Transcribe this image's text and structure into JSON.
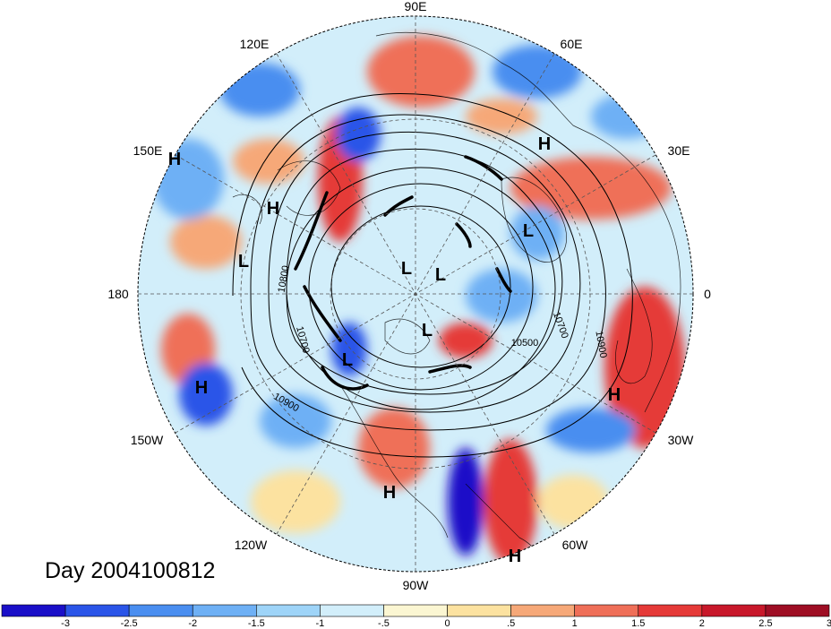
{
  "map": {
    "day_label": "Day 2004100812",
    "longitude_labels": [
      {
        "name": "lon-90e",
        "text": "90E",
        "angle": 90
      },
      {
        "name": "lon-60e",
        "text": "60E",
        "angle": 60
      },
      {
        "name": "lon-30e",
        "text": "30E",
        "angle": 30
      },
      {
        "name": "lon-0",
        "text": "0",
        "angle": 0
      },
      {
        "name": "lon-30w",
        "text": "30W",
        "angle": -30
      },
      {
        "name": "lon-60w",
        "text": "60W",
        "angle": -60
      },
      {
        "name": "lon-90w",
        "text": "90W",
        "angle": -90
      },
      {
        "name": "lon-120w",
        "text": "120W",
        "angle": -120
      },
      {
        "name": "lon-150w",
        "text": "150W",
        "angle": -150
      },
      {
        "name": "lon-180",
        "text": "180",
        "angle": 180
      },
      {
        "name": "lon-150e",
        "text": "150E",
        "angle": 150
      },
      {
        "name": "lon-120e",
        "text": "120E",
        "angle": 120
      }
    ],
    "pressure_centers": [
      {
        "type": "H"
      },
      {
        "type": "H"
      },
      {
        "type": "L"
      },
      {
        "type": "H"
      },
      {
        "type": "L"
      },
      {
        "type": "L"
      },
      {
        "type": "L"
      },
      {
        "type": "L"
      },
      {
        "type": "L"
      },
      {
        "type": "H"
      },
      {
        "type": "H"
      },
      {
        "type": "H"
      },
      {
        "type": "H"
      }
    ],
    "contour_labels": [
      "10800",
      "10700",
      "10900",
      "10500",
      "10700",
      "10900"
    ]
  },
  "colorbar": {
    "colors": [
      "#1a0fc8",
      "#2a55e8",
      "#4a8ef0",
      "#6eb0f5",
      "#9ed4f8",
      "#d2eefa",
      "#fbf6d2",
      "#fce2a0",
      "#f6a878",
      "#ef6f58",
      "#e53a38",
      "#c8182a",
      "#9e0e24"
    ],
    "ticks": [
      "-3",
      "-2.5",
      "-2",
      "-1.5",
      "-1",
      "-.5",
      "0",
      ".5",
      "1",
      "1.5",
      "2",
      "2.5",
      "3"
    ]
  }
}
